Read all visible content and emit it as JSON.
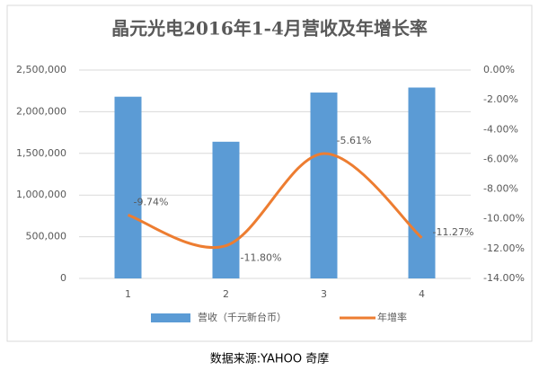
{
  "chart_data": {
    "type": "bar-line",
    "title": "晶元光电2016年1-4月营收及年增长率",
    "categories": [
      "1",
      "2",
      "3",
      "4"
    ],
    "series": [
      {
        "name": "营收（千元新台币）",
        "type": "bar",
        "color": "#5b9bd5",
        "values": [
          2180000,
          1640000,
          2230000,
          2290000
        ]
      },
      {
        "name": "年增率",
        "type": "line",
        "axis": "y2",
        "color": "#ed7d31",
        "values": [
          -9.74,
          -11.8,
          -5.61,
          -11.27
        ],
        "value_labels": [
          "-9.74%",
          "-11.80%",
          "-5.61%",
          "-11.27%"
        ]
      }
    ],
    "ylim": [
      0,
      2500000
    ],
    "yticks": [
      0,
      {
        "value": 500000,
        "label": "500,000"
      },
      {
        "value": 1000000,
        "label": "1,000,000"
      },
      {
        "value": 1500000,
        "label": "1,500,000"
      },
      {
        "value": 2000000,
        "label": "2,000,000"
      },
      {
        "value": 2500000,
        "label": "2,500,000"
      }
    ],
    "y2lim": [
      -14,
      0
    ],
    "y2ticks": [
      {
        "value": 0,
        "label": "0.00%"
      },
      {
        "value": -2,
        "label": "-2.00%"
      },
      {
        "value": -4,
        "label": "-4.00%"
      },
      {
        "value": -6,
        "label": "-6.00%"
      },
      {
        "value": -8,
        "label": "-8.00%"
      },
      {
        "value": -10,
        "label": "-10.00%"
      },
      {
        "value": -12,
        "label": "-12.00%"
      },
      {
        "value": -14,
        "label": "-14.00%"
      }
    ],
    "grid": true,
    "legend": "bottom"
  },
  "source": "数据来源:YAHOO 奇摩"
}
